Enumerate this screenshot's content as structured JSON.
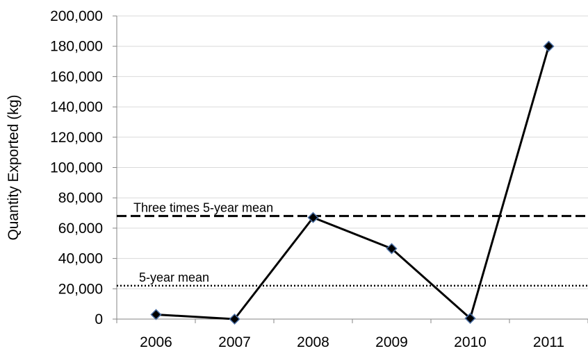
{
  "chart_data": {
    "type": "line",
    "title": "",
    "xlabel": "",
    "ylabel": "Quantity Exported (kg)",
    "ylim": [
      0,
      200000
    ],
    "grid": true,
    "categories": [
      "2006",
      "2007",
      "2008",
      "2009",
      "2010",
      "2011"
    ],
    "series": [
      {
        "values": [
          3000,
          0,
          67000,
          46500,
          500,
          180000
        ]
      }
    ],
    "y_ticks": [
      0,
      20000,
      40000,
      60000,
      80000,
      100000,
      120000,
      140000,
      160000,
      180000,
      200000
    ],
    "y_tick_labels": [
      "0",
      "20,000",
      "40,000",
      "60,000",
      "80,000",
      "100,000",
      "120,000",
      "140,000",
      "160,000",
      "180,000",
      "200,000"
    ],
    "reference_lines": [
      {
        "label": "Three times 5-year mean",
        "value": 68000,
        "style": "dashed"
      },
      {
        "label": "5-year mean",
        "value": 22000,
        "style": "dotted"
      }
    ],
    "colors": {
      "line": "#000000",
      "marker_fill": "#000000",
      "marker_edge": "#4a6fa5",
      "grid": "#d9d9d9"
    }
  }
}
